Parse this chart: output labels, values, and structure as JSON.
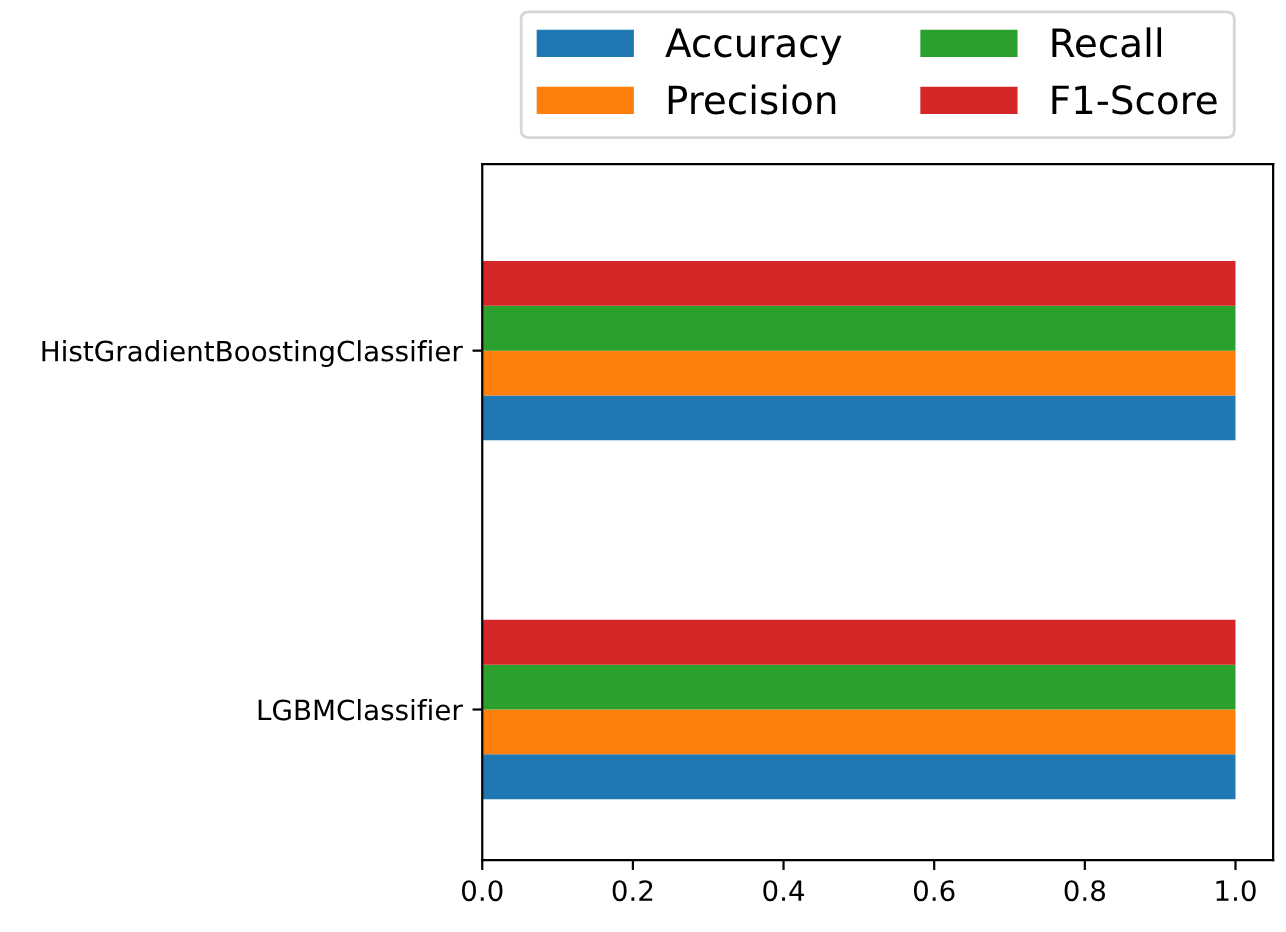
{
  "chart_data": {
    "type": "bar",
    "orientation": "horizontal",
    "categories": [
      "HistGradientBoostingClassifier",
      "LGBMClassifier"
    ],
    "series": [
      {
        "name": "Accuracy",
        "color": "#1f77b4",
        "values": [
          1.0,
          1.0
        ]
      },
      {
        "name": "Precision",
        "color": "#ff7f0e",
        "values": [
          1.0,
          1.0
        ]
      },
      {
        "name": "Recall",
        "color": "#2ca02c",
        "values": [
          1.0,
          1.0
        ]
      },
      {
        "name": "F1-Score",
        "color": "#d62728",
        "values": [
          1.0,
          1.0
        ]
      }
    ],
    "xlim": [
      0,
      1.05
    ],
    "xticks": [
      {
        "value": 0,
        "label": "0.0"
      },
      {
        "value": 0.2,
        "label": "0.2"
      },
      {
        "value": 0.4,
        "label": "0.4"
      },
      {
        "value": 0.6,
        "label": "0.6"
      },
      {
        "value": 0.8,
        "label": "0.8"
      },
      {
        "value": 1.0,
        "label": "1.0"
      }
    ],
    "grid": false,
    "legend": "top"
  }
}
